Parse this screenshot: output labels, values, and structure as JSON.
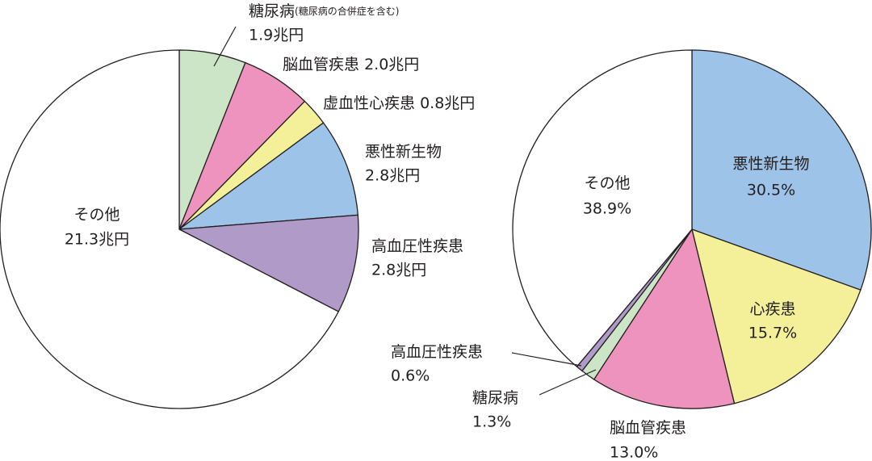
{
  "chart_data": [
    {
      "type": "pie",
      "categories": [
        "糖尿病",
        "脳血管疾患",
        "虚血性心疾患",
        "悪性新生物",
        "高血圧性疾患",
        "その他"
      ],
      "category_note": "(糖尿病の合併症を含む)",
      "values": [
        1.9,
        2.0,
        0.8,
        2.8,
        2.8,
        21.3
      ],
      "value_labels": [
        "1.9兆円",
        "2.0兆円",
        "0.8兆円",
        "2.8兆円",
        "2.8兆円",
        "21.3兆円"
      ],
      "colors": [
        "#cce5c6",
        "#ed93bd",
        "#f4f09a",
        "#9dc3e8",
        "#b09ac8",
        "#ffffff"
      ]
    },
    {
      "type": "pie",
      "categories": [
        "悪性新生物",
        "心疾患",
        "脳血管疾患",
        "糖尿病",
        "高血圧性疾患",
        "その他"
      ],
      "values": [
        30.5,
        15.7,
        13.0,
        1.3,
        0.6,
        38.9
      ],
      "value_labels": [
        "30.5%",
        "15.7%",
        "13.0%",
        "1.3%",
        "0.6%",
        "38.9%"
      ],
      "colors": [
        "#9dc3e8",
        "#f4f09a",
        "#ed93bd",
        "#cce5c6",
        "#b09ac8",
        "#ffffff"
      ]
    }
  ]
}
